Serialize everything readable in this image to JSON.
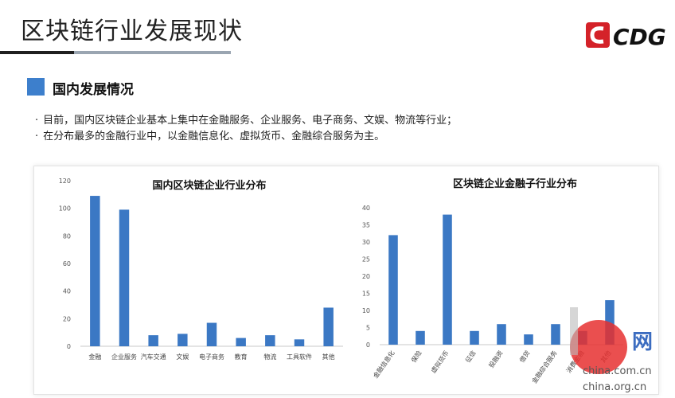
{
  "header": {
    "title": "区块链行业发展现状",
    "logo_text": "CDG"
  },
  "section": {
    "title": "国内发展情况"
  },
  "bullets": [
    "目前，国内区块链企业基本上集中在金融服务、企业服务、电子商务、文娱、物流等行业；",
    "在分布最多的金融行业中，以金融信息化、虚拟货币、金融综合服务为主。"
  ],
  "colors": {
    "bar": "#3b78c4",
    "accent": "#3d7fcc",
    "logo_red": "#d42229"
  },
  "watermark": {
    "text1": "网",
    "text2": "china.com.cn",
    "text3": "china.org.cn"
  },
  "chart_data": [
    {
      "type": "bar",
      "title": "国内区块链企业行业分布",
      "categories": [
        "金融",
        "企业服务",
        "汽车交通",
        "文娱",
        "电子商务",
        "教育",
        "物流",
        "工具软件",
        "其他"
      ],
      "values": [
        109,
        99,
        8,
        9,
        17,
        6,
        8,
        5,
        28
      ],
      "ylim": [
        0,
        120
      ],
      "yticks": [
        0,
        20,
        40,
        60,
        80,
        100,
        120
      ],
      "grid": false
    },
    {
      "type": "bar",
      "title": "区块链企业金融子行业分布",
      "categories": [
        "金融信息化",
        "保险",
        "虚拟货币",
        "征信",
        "投融资",
        "借贷",
        "金融综合服务",
        "消费金融",
        "其他"
      ],
      "values": [
        32,
        4,
        38,
        4,
        6,
        3,
        6,
        4,
        13
      ],
      "ylim": [
        0,
        40
      ],
      "yticks": [
        0,
        5,
        10,
        15,
        20,
        25,
        30,
        35,
        40
      ],
      "grid": false
    }
  ]
}
